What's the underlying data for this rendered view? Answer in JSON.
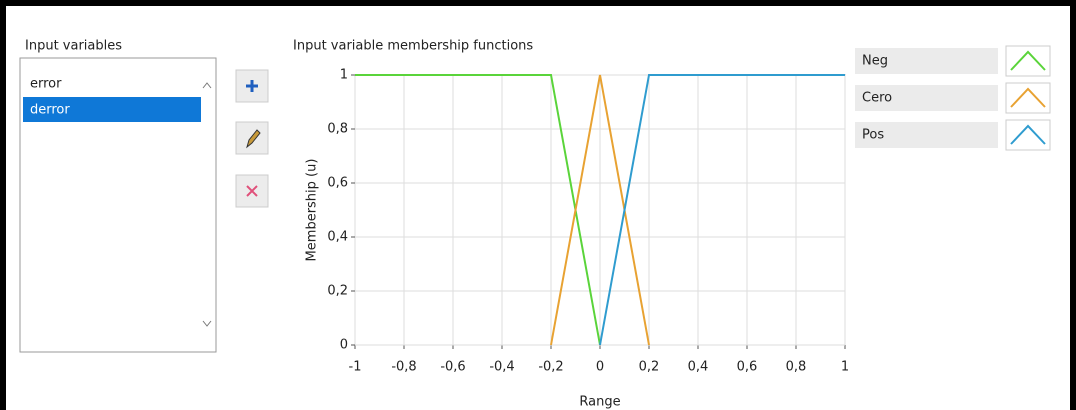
{
  "input_variables": {
    "title": "Input variables",
    "items": [
      "error",
      "derror"
    ]
  },
  "chart_data": {
    "type": "line",
    "title": "Input variable membership functions",
    "x_label": "Range",
    "y_label": "Membership (u)",
    "xlim": [
      -1,
      1
    ],
    "xticks": [
      -1,
      {
        "value": -0.8,
        "label": "-0,8"
      },
      {
        "value": -0.6,
        "label": "-0,6"
      },
      {
        "value": -0.4,
        "label": "-0,4"
      },
      {
        "value": -0.2,
        "label": "-0,2"
      },
      0,
      {
        "value": 0.2,
        "label": "0,2"
      },
      {
        "value": 0.4,
        "label": "0,4"
      },
      {
        "value": 0.6,
        "label": "0,6"
      },
      {
        "value": 0.8,
        "label": "0,8"
      },
      1
    ],
    "ylim": [
      0,
      1
    ],
    "yticks": [
      0,
      {
        "value": 0.2,
        "label": "0,2"
      },
      {
        "value": 0.4,
        "label": "0,4"
      },
      {
        "value": 0.6,
        "label": "0,6"
      },
      {
        "value": 0.8,
        "label": "0,8"
      },
      1
    ],
    "grid": true,
    "series": [
      {
        "name": "Neg",
        "color": "#5ad43a",
        "x": [
          -1,
          -0.2,
          0
        ],
        "values": [
          1,
          1,
          0
        ]
      },
      {
        "name": "Cero",
        "color": "#e8a232",
        "x": [
          -0.2,
          0,
          0.2
        ],
        "values": [
          0,
          1,
          0
        ]
      },
      {
        "name": "Pos",
        "color": "#2f9ccf",
        "x": [
          0,
          0.2,
          1
        ],
        "values": [
          0,
          1,
          1
        ]
      }
    ]
  }
}
